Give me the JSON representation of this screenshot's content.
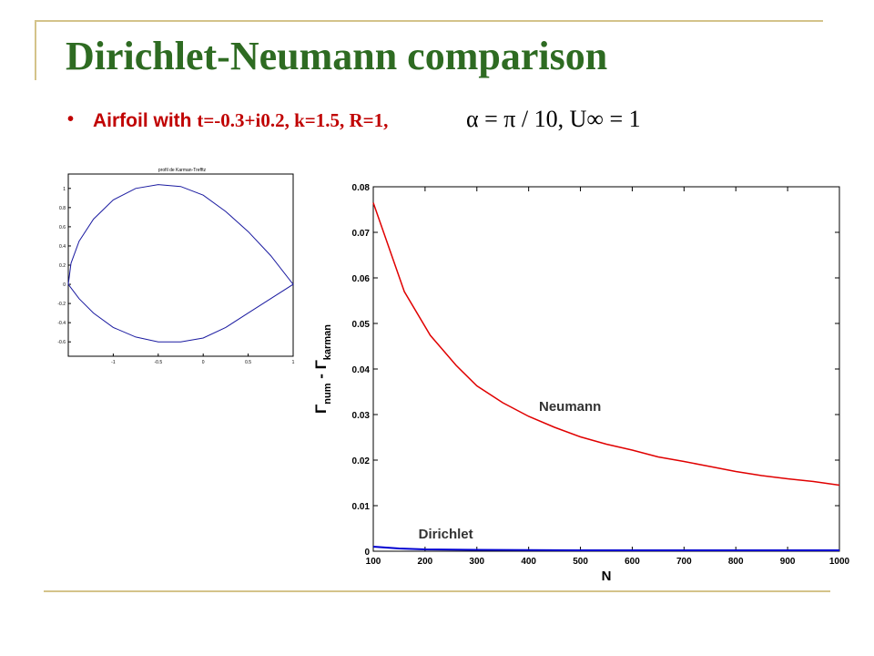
{
  "slide": {
    "title": "Dirichlet-Neumann comparison",
    "bullet": {
      "marker": "•",
      "text": "Airfoil with ",
      "params": "t=-0.3+i0.2, k=1.5, R=1,",
      "formula": "α = π / 10,  U∞ = 1"
    }
  },
  "colors": {
    "title": "#2e6b22",
    "bullet": "#c00000",
    "frame": "#d4c38a",
    "neumann": "#e00000",
    "dirichlet": "#0000d0",
    "airfoil": "#1a1aa0"
  },
  "airfoil_plot": {
    "title": "profil de Karman-Trefftz",
    "x_ticks": [
      "-1",
      "-0.5",
      "0",
      "0.5",
      "1"
    ],
    "y_ticks": [
      "1",
      "0.8",
      "0.6",
      "0.4",
      "0.2",
      "0",
      "-0.2",
      "-0.4",
      "-0.6"
    ],
    "xlim": [
      -1.5,
      1
    ],
    "ylim": [
      -0.75,
      1.15
    ]
  },
  "chart_data": {
    "type": "line",
    "title": "",
    "xlabel": "N",
    "ylabel_main": "Γ",
    "ylabel_sub1": "num",
    "ylabel_mid": " - Γ",
    "ylabel_sub2": "karman",
    "xlim": [
      100,
      1000
    ],
    "ylim": [
      0,
      0.08
    ],
    "x_ticks": [
      "100",
      "200",
      "300",
      "400",
      "500",
      "600",
      "700",
      "800",
      "900",
      "1000"
    ],
    "y_ticks": [
      "0",
      "0.01",
      "0.02",
      "0.03",
      "0.04",
      "0.05",
      "0.06",
      "0.07",
      "0.08"
    ],
    "series": [
      {
        "name": "Neumann",
        "x": [
          100,
          160,
          210,
          260,
          300,
          350,
          400,
          450,
          500,
          550,
          600,
          650,
          700,
          750,
          800,
          850,
          900,
          950,
          1000
        ],
        "values": [
          0.0765,
          0.057,
          0.0474,
          0.0408,
          0.0363,
          0.0326,
          0.0296,
          0.0272,
          0.0251,
          0.0235,
          0.0222,
          0.0207,
          0.0197,
          0.0186,
          0.0175,
          0.0166,
          0.0159,
          0.0153,
          0.0145
        ]
      },
      {
        "name": "Dirichlet",
        "x": [
          100,
          150,
          200,
          300,
          500,
          700,
          1000
        ],
        "values": [
          0.001,
          0.0006,
          0.0004,
          0.0003,
          0.0002,
          0.0002,
          0.0002
        ]
      }
    ]
  }
}
